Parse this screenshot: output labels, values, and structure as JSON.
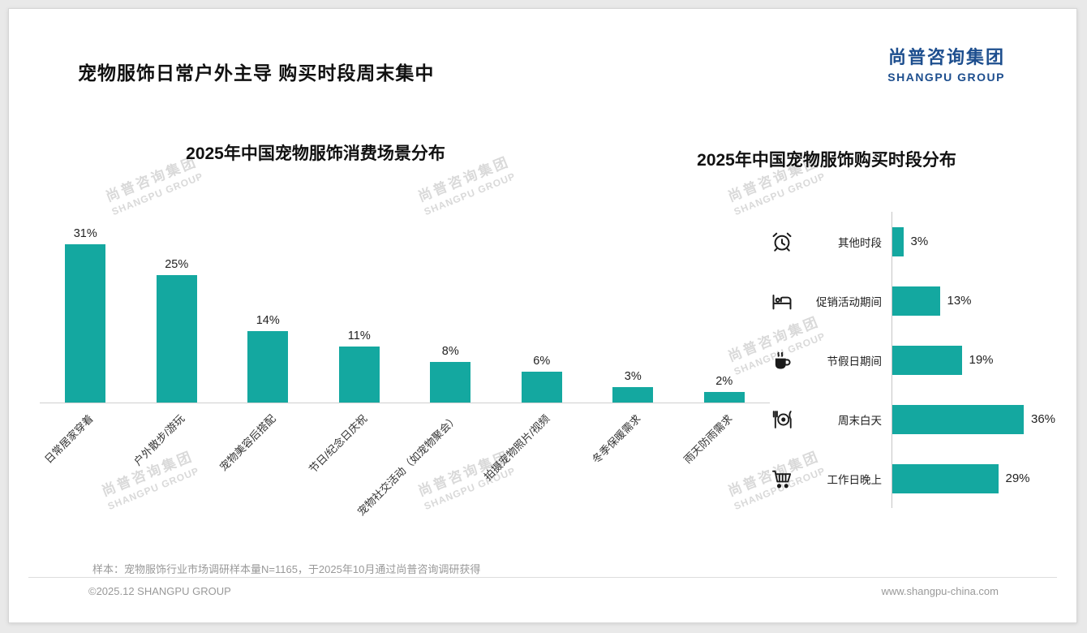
{
  "page": {
    "title": "宠物服饰日常户外主导 购买时段周末集中",
    "logo": {
      "cn": "尚普咨询集团",
      "en": "SHANGPU GROUP"
    },
    "watermark": {
      "cn": "尚普咨询集团",
      "en": "SHANGPU GROUP"
    },
    "footnote": "样本：宠物服饰行业市场调研样本量N=1165，于2025年10月通过尚普咨询调研获得",
    "footer_left": "©2025.12 SHANGPU GROUP",
    "footer_right": "www.shangpu-china.com"
  },
  "colors": {
    "accent": "#14A8A0",
    "logo_blue": "#1D4E8E",
    "watermark": "#D9D9D9"
  },
  "chart_data": [
    {
      "type": "bar",
      "orientation": "vertical",
      "title": "2025年中国宠物服饰消费场景分布",
      "categories": [
        "日常居家穿着",
        "户外散步/游玩",
        "宠物美容后搭配",
        "节日/纪念日庆祝",
        "宠物社交活动（如宠物聚会）",
        "拍摄宠物照片/视频",
        "冬季保暖需求",
        "雨天防雨需求"
      ],
      "values": [
        31,
        25,
        14,
        11,
        8,
        6,
        3,
        2
      ],
      "value_labels": [
        "31%",
        "25%",
        "14%",
        "11%",
        "8%",
        "6%",
        "3%",
        "2%"
      ],
      "unit": "%",
      "ylim": [
        0,
        35
      ],
      "grid": false,
      "legend": "none"
    },
    {
      "type": "bar",
      "orientation": "horizontal",
      "title": "2025年中国宠物服饰购买时段分布",
      "categories": [
        "其他时段",
        "促销活动期间",
        "节假日期间",
        "周末白天",
        "工作日晚上"
      ],
      "values": [
        3,
        13,
        19,
        36,
        29
      ],
      "value_labels": [
        "3%",
        "13%",
        "19%",
        "36%",
        "29%"
      ],
      "icons": [
        "alarm-clock-icon",
        "bed-icon",
        "coffee-cup-icon",
        "dining-plate-icon",
        "shopping-cart-icon"
      ],
      "unit": "%",
      "xlim": [
        0,
        40
      ],
      "grid": false,
      "legend": "none"
    }
  ]
}
